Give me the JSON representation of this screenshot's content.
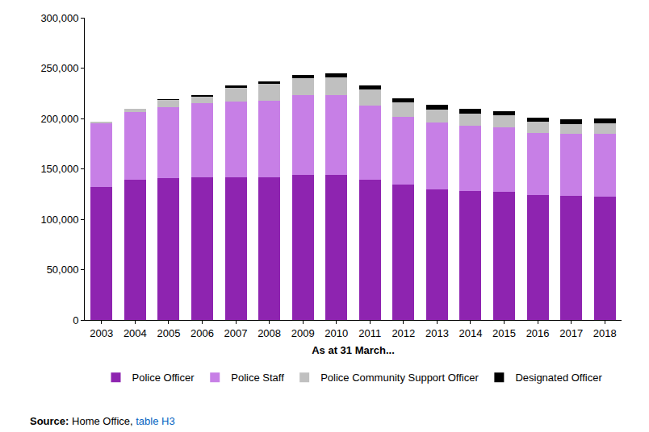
{
  "chart_data": {
    "type": "bar",
    "stacked": true,
    "grid": false,
    "legend": "bottom",
    "x_label": "As at 31 March...",
    "source": [
      "Source:",
      "Home Office,",
      "table H3"
    ],
    "categories": [
      "2003",
      "2004",
      "2005",
      "2006",
      "2007",
      "2008",
      "2009",
      "2010",
      "2011",
      "2012",
      "2013",
      "2014",
      "2015",
      "2016",
      "2017",
      "2018"
    ],
    "ylim": [
      0,
      300000
    ],
    "yticks": [
      0,
      {
        "value": 50000,
        "label": "50,000"
      },
      {
        "value": 100000,
        "label": "100,000"
      },
      {
        "value": 150000,
        "label": "150,000"
      },
      {
        "value": 200000,
        "label": "200,000"
      },
      {
        "value": 250000,
        "label": "250,000"
      },
      {
        "value": 300000,
        "label": "300,000"
      }
    ],
    "series": [
      {
        "name": "Police Officer",
        "color": "#8e24b0",
        "values": [
          132000,
          139000,
          141000,
          141500,
          141900,
          141800,
          143800,
          143700,
          139100,
          134100,
          129600,
          128000,
          127000,
          124100,
          123100,
          122400
        ]
      },
      {
        "name": "Police Staff",
        "color": "#c77fe6",
        "values": [
          63500,
          67500,
          70500,
          74000,
          75100,
          76200,
          79700,
          79800,
          73900,
          67900,
          66400,
          64500,
          64500,
          61900,
          61400,
          62600
        ]
      },
      {
        "name": "Police Community Support Officer",
        "color": "#c0c0c0",
        "values": [
          1000,
          3500,
          7000,
          6500,
          13500,
          16500,
          16500,
          17000,
          16000,
          14000,
          13000,
          12500,
          12000,
          10500,
          10000,
          10500
        ]
      },
      {
        "name": "Designated Officer",
        "color": "#000000",
        "values": [
          0,
          0,
          1000,
          1500,
          2000,
          2000,
          3000,
          4000,
          4000,
          4000,
          4500,
          4500,
          4000,
          4500,
          4500,
          4500
        ]
      }
    ]
  }
}
